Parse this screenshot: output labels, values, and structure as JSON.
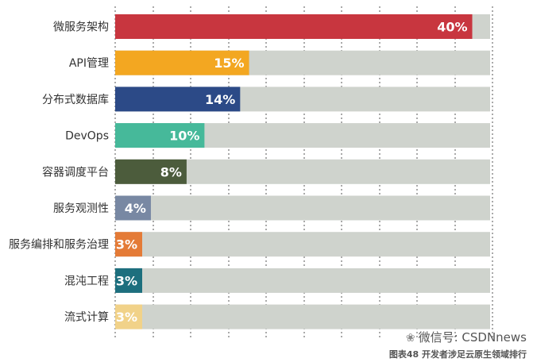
{
  "chart_data": {
    "type": "bar",
    "orientation": "horizontal",
    "categories": [
      "微服务架构",
      "API管理",
      "分布式数据库",
      "DevOps",
      "容器调度平台",
      "服务观测性",
      "服务编排和服务治理",
      "混沌工程",
      "流式计算"
    ],
    "values": [
      40,
      15,
      14,
      10,
      8,
      4,
      3,
      3,
      3
    ],
    "value_labels": [
      "40%",
      "15%",
      "14%",
      "10%",
      "8%",
      "4%",
      "3%",
      "3%",
      "3%"
    ],
    "colors": [
      "#c8363f",
      "#f3a721",
      "#2c4a87",
      "#46b99a",
      "#4c5c3c",
      "#7888a3",
      "#e47b37",
      "#1d6f7e",
      "#f1d289"
    ],
    "track_color": "#cfd3cd",
    "xlim": [
      0,
      42
    ],
    "grid": true
  },
  "footer": {
    "wechat_icon": "wechat-icon",
    "wechat": "微信号: CSDNnews",
    "caption": "图表48 开发者涉足云原生领域排行"
  }
}
